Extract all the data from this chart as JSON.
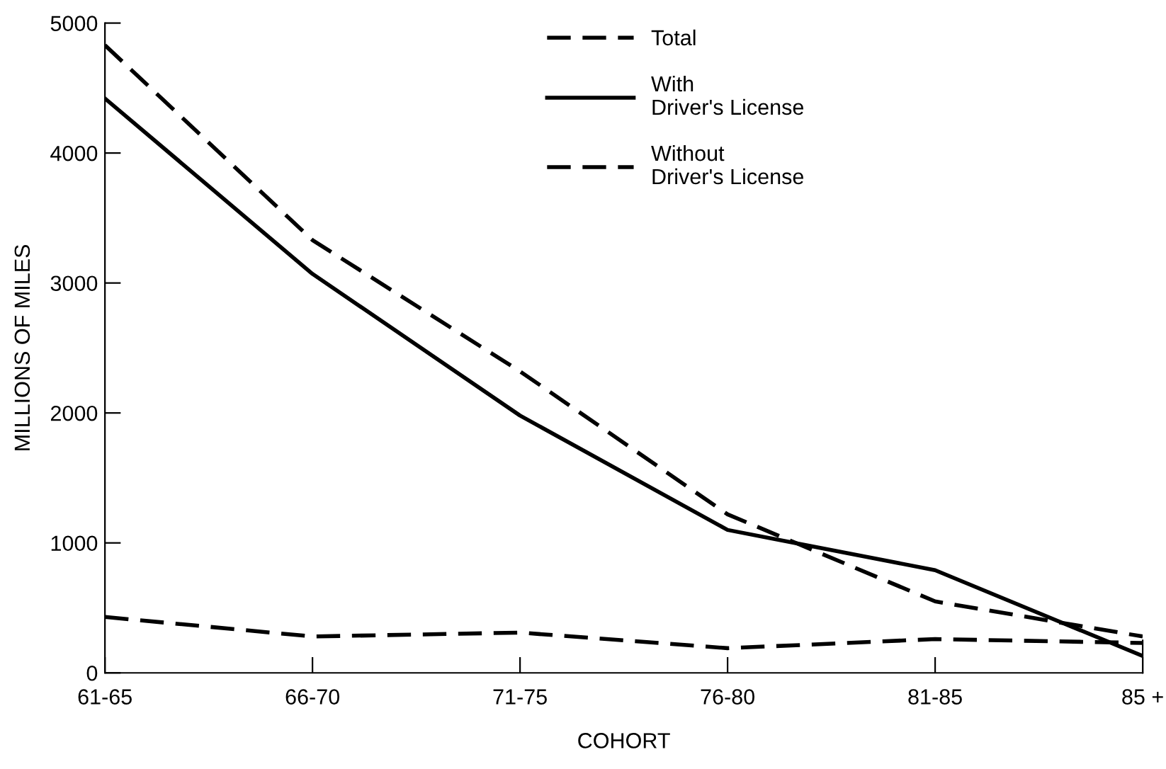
{
  "chart_data": {
    "type": "line",
    "xlabel": "COHORT",
    "ylabel": "MILLIONS OF MILES",
    "categories": [
      "61-65",
      "66-70",
      "71-75",
      "76-80",
      "81-85",
      "85 +"
    ],
    "ylim": [
      0,
      5000
    ],
    "yticks": [
      0,
      1000,
      2000,
      3000,
      4000,
      5000
    ],
    "grid": false,
    "legend": "top",
    "marker": "none",
    "series": [
      {
        "name": "Total",
        "color": "#000000",
        "line_style": "dashed",
        "values": [
          4830,
          3330,
          2320,
          1220,
          550,
          280
        ]
      },
      {
        "name": "With\nDriver's License",
        "color": "#000000",
        "line_style": "solid",
        "values": [
          4420,
          3070,
          1980,
          1100,
          790,
          130
        ]
      },
      {
        "name": "Without\nDriver's License",
        "color": "#000000",
        "line_style": "dashed",
        "values": [
          430,
          280,
          310,
          190,
          260,
          230
        ]
      }
    ]
  }
}
